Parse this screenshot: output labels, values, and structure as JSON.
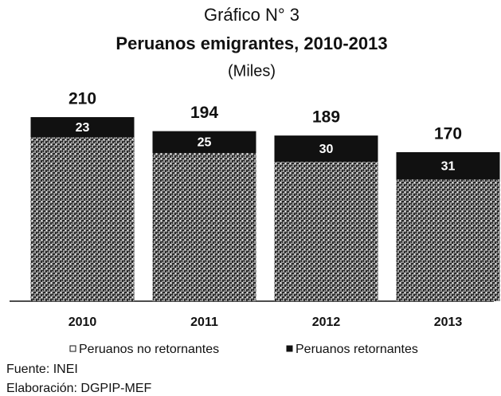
{
  "chart_data": {
    "type": "stacked_bar",
    "title": "Gráfico N° 3",
    "subtitle": "Peruanos emigrantes, 2010-2013",
    "unit_label": "(Miles)",
    "categories": [
      "2010",
      "2011",
      "2012",
      "2013"
    ],
    "series": [
      {
        "name": "Peruanos no retornantes",
        "color": "#8a8a8a",
        "values": [
          187,
          169,
          159,
          139
        ]
      },
      {
        "name": "Peruanos retornantes",
        "color": "#111111",
        "values": [
          23,
          25,
          30,
          31
        ]
      }
    ],
    "totals": [
      210,
      194,
      189,
      170
    ],
    "source": "Fuente: INEI",
    "credit": "Elaboración: DGPIP-MEF"
  }
}
